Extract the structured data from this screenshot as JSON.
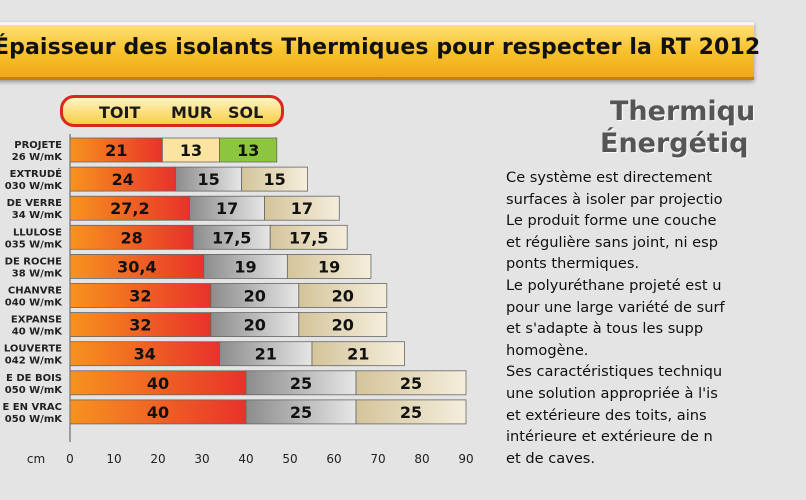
{
  "chart_data": {
    "type": "bar",
    "stacked": true,
    "title": "Épaisseur  des isolants Thermiques pour respecter la RT 2012",
    "xlabel": "cm",
    "xlim": [
      0,
      90
    ],
    "x_ticks": [
      "0",
      "10",
      "20",
      "30",
      "40",
      "50",
      "60",
      "70",
      "80",
      "90"
    ],
    "legend": [
      "TOIT",
      "MUR",
      "SOL"
    ],
    "categories": [
      {
        "name": "PROJETE",
        "lambda": "26 W/mK"
      },
      {
        "name": "EXTRUDÉ",
        "lambda": "030 W/mK"
      },
      {
        "name": "DE VERRE",
        "lambda": "34 W/mK"
      },
      {
        "name": "LLULOSE",
        "lambda": "035 W/mK"
      },
      {
        "name": "DE ROCHE",
        "lambda": "38 W/mK"
      },
      {
        "name": "CHANVRE",
        "lambda": "040 W/mK"
      },
      {
        "name": "EXPANSE",
        "lambda": "40 W/mK"
      },
      {
        "name": "LOUVERTE",
        "lambda": "042 W/mK"
      },
      {
        "name": "E DE BOIS",
        "lambda": "050 W/mK"
      },
      {
        "name": "E EN VRAC",
        "lambda": "050 W/mK"
      }
    ],
    "series": [
      {
        "name": "TOIT",
        "values": [
          21,
          24,
          27.2,
          28,
          30.4,
          32,
          32,
          34,
          40,
          40
        ],
        "labels": [
          "21",
          "24",
          "27,2",
          "28",
          "30,4",
          "32",
          "32",
          "34",
          "40",
          "40"
        ]
      },
      {
        "name": "MUR",
        "values": [
          13,
          15,
          17,
          17.5,
          19,
          20,
          20,
          21,
          25,
          25
        ],
        "labels": [
          "13",
          "15",
          "17",
          "17,5",
          "19",
          "20",
          "20",
          "21",
          "25",
          "25"
        ]
      },
      {
        "name": "SOL",
        "values": [
          13,
          15,
          17,
          17.5,
          19,
          20,
          20,
          21,
          25,
          25
        ],
        "labels": [
          "13",
          "15",
          "17",
          "17,5",
          "19",
          "20",
          "20",
          "21",
          "25",
          "25"
        ]
      }
    ],
    "colors": {
      "toit": "#e8322a",
      "toit_start": "#f7931e",
      "mur": "#8c8c8c",
      "mur_light": "#e6e6e6",
      "sol": "#d4c49a",
      "sol_light": "#f5eedc",
      "first_row_mur": "#fbe3a0",
      "first_row_sol": "#8cc63f"
    }
  },
  "side_panel": {
    "title_line1": "Thermiqu",
    "title_line2": "Énergétiq",
    "paragraph_lines": [
      "Ce système est directement",
      "surfaces à isoler par projectio",
      "Le produit forme une couche",
      "et régulière sans joint, ni esp",
      "ponts thermiques.",
      "Le polyuréthane projeté est u",
      "pour une large variété de surf",
      "et s'adapte à tous les supp",
      "homogène.",
      "Ses caractéristiques techniqu",
      "une solution appropriée à l'is",
      "et extérieure des toits, ains",
      "intérieure et extérieure de n",
      "et de caves."
    ]
  }
}
